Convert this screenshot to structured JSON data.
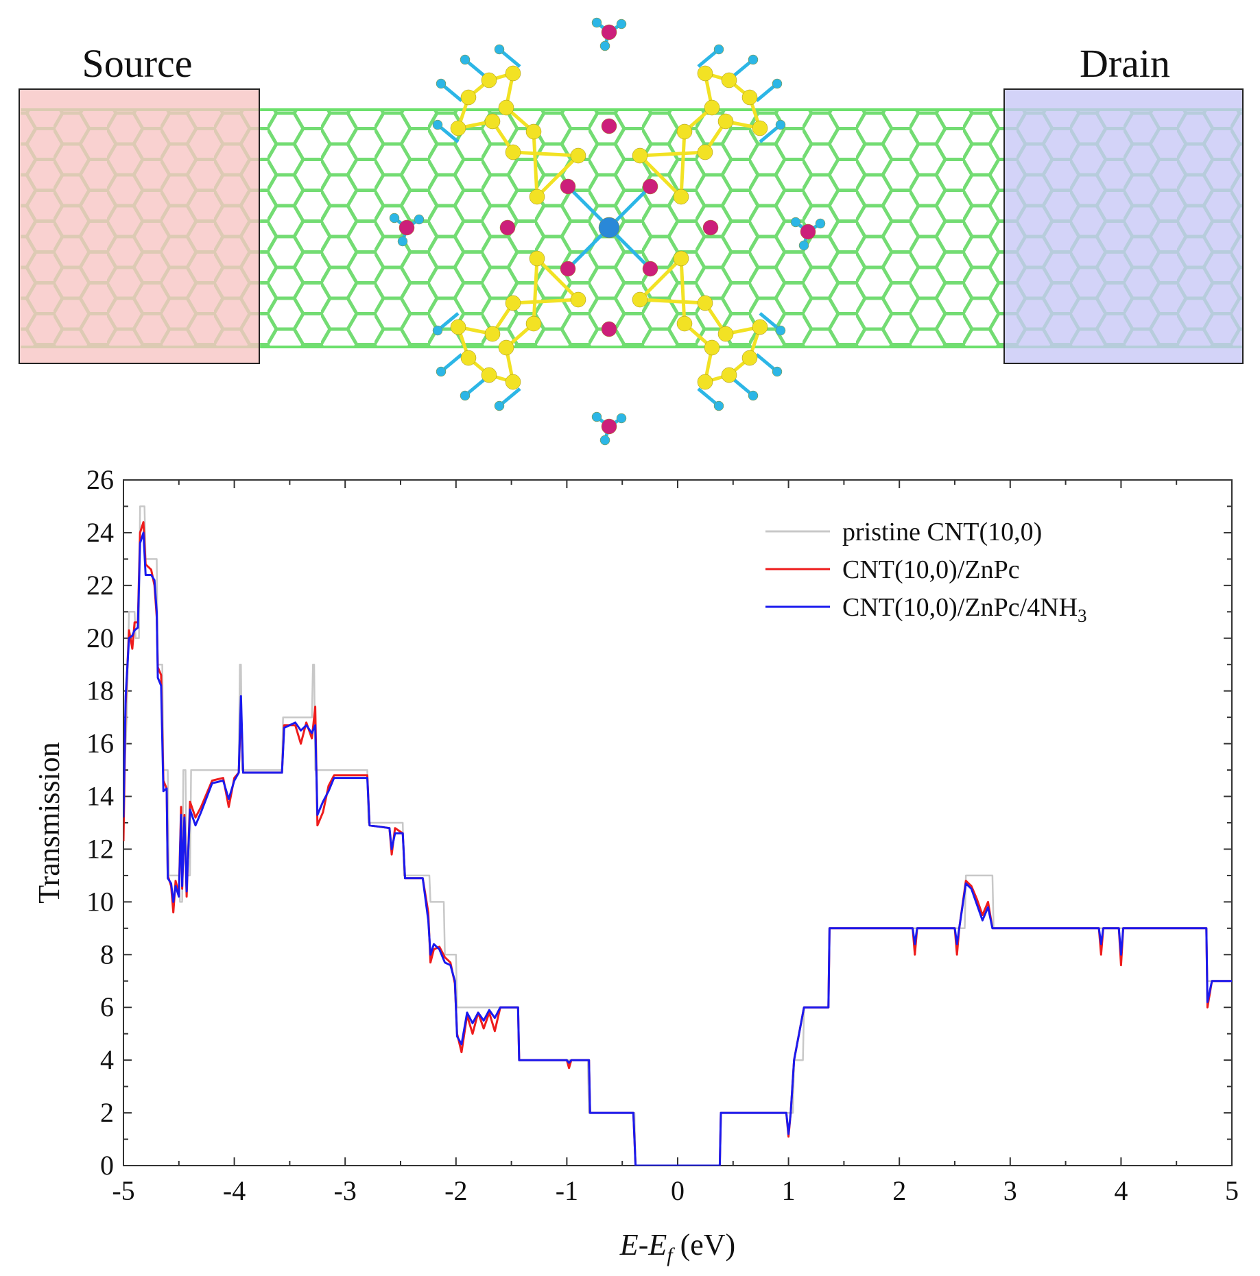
{
  "schematic": {
    "source_label": "Source",
    "drain_label": "Drain",
    "source_color": "#f7c6c4",
    "drain_color": "#c8c8f6",
    "tube_color": "#6ce06c",
    "atom_colors": {
      "carbon": "#f2e224",
      "nitrogen": "#cc1f7a",
      "hydrogen": "#2cb6e6",
      "zinc": "#2a88d8"
    }
  },
  "chart_data": {
    "type": "line",
    "title": "",
    "xlabel_italic_1": "E",
    "xlabel_mid": "-",
    "xlabel_italic_2": "E",
    "xlabel_sub": "f",
    "xlabel_unit": " (eV)",
    "ylabel": "Transmission",
    "xlim": [
      -5,
      5
    ],
    "ylim": [
      0,
      26
    ],
    "xticks": [
      -5,
      -4,
      -3,
      -2,
      -1,
      0,
      1,
      2,
      3,
      4,
      5
    ],
    "yticks": [
      0,
      2,
      4,
      6,
      8,
      10,
      12,
      14,
      16,
      18,
      20,
      22,
      24,
      26
    ],
    "legend_position": "top-right",
    "series": [
      {
        "name": "pristine CNT(10,0)",
        "color": "#c8c8c8",
        "points": [
          [
            -5.0,
            14
          ],
          [
            -4.97,
            17
          ],
          [
            -4.95,
            21
          ],
          [
            -4.9,
            21
          ],
          [
            -4.89,
            20
          ],
          [
            -4.86,
            20
          ],
          [
            -4.85,
            25
          ],
          [
            -4.81,
            25
          ],
          [
            -4.8,
            23
          ],
          [
            -4.7,
            23
          ],
          [
            -4.69,
            19
          ],
          [
            -4.65,
            19
          ],
          [
            -4.64,
            15
          ],
          [
            -4.6,
            15
          ],
          [
            -4.59,
            11
          ],
          [
            -4.5,
            11
          ],
          [
            -4.49,
            10
          ],
          [
            -4.47,
            10
          ],
          [
            -4.46,
            15
          ],
          [
            -4.44,
            15
          ],
          [
            -4.43,
            11
          ],
          [
            -4.4,
            11
          ],
          [
            -4.39,
            15
          ],
          [
            -3.96,
            15
          ],
          [
            -3.95,
            19
          ],
          [
            -3.94,
            19
          ],
          [
            -3.93,
            15
          ],
          [
            -3.57,
            15
          ],
          [
            -3.56,
            17
          ],
          [
            -3.3,
            17
          ],
          [
            -3.29,
            19
          ],
          [
            -3.28,
            19
          ],
          [
            -3.27,
            15
          ],
          [
            -2.8,
            15
          ],
          [
            -2.79,
            13
          ],
          [
            -2.48,
            13
          ],
          [
            -2.47,
            11
          ],
          [
            -2.24,
            11
          ],
          [
            -2.23,
            10
          ],
          [
            -2.11,
            10
          ],
          [
            -2.1,
            8
          ],
          [
            -2.0,
            8
          ],
          [
            -1.99,
            6
          ],
          [
            -1.44,
            6
          ],
          [
            -1.43,
            4
          ],
          [
            -0.81,
            4
          ],
          [
            -0.8,
            2
          ],
          [
            -0.39,
            2
          ],
          [
            -0.38,
            0
          ],
          [
            0.38,
            0
          ],
          [
            0.39,
            2
          ],
          [
            1.04,
            2
          ],
          [
            1.05,
            4
          ],
          [
            1.13,
            4
          ],
          [
            1.14,
            6
          ],
          [
            1.36,
            6
          ],
          [
            1.37,
            9
          ],
          [
            2.59,
            9
          ],
          [
            2.6,
            11
          ],
          [
            2.84,
            11
          ],
          [
            2.85,
            9
          ],
          [
            4.77,
            9
          ],
          [
            4.78,
            7
          ],
          [
            5.0,
            7
          ]
        ]
      },
      {
        "name": "CNT(10,0)/ZnPc",
        "color": "#ee1c1c",
        "points": [
          [
            -5.0,
            12.3
          ],
          [
            -4.98,
            17.5
          ],
          [
            -4.95,
            20.3
          ],
          [
            -4.92,
            19.6
          ],
          [
            -4.9,
            20.6
          ],
          [
            -4.87,
            20.6
          ],
          [
            -4.85,
            24.0
          ],
          [
            -4.82,
            24.4
          ],
          [
            -4.8,
            22.8
          ],
          [
            -4.75,
            22.6
          ],
          [
            -4.72,
            22.0
          ],
          [
            -4.7,
            20.8
          ],
          [
            -4.69,
            18.9
          ],
          [
            -4.66,
            18.6
          ],
          [
            -4.64,
            14.6
          ],
          [
            -4.61,
            14.3
          ],
          [
            -4.6,
            11.0
          ],
          [
            -4.57,
            10.6
          ],
          [
            -4.55,
            9.6
          ],
          [
            -4.53,
            10.8
          ],
          [
            -4.5,
            10.3
          ],
          [
            -4.48,
            13.6
          ],
          [
            -4.47,
            10.5
          ],
          [
            -4.45,
            13.3
          ],
          [
            -4.43,
            10.2
          ],
          [
            -4.4,
            13.8
          ],
          [
            -4.35,
            13.2
          ],
          [
            -4.3,
            13.6
          ],
          [
            -4.2,
            14.6
          ],
          [
            -4.1,
            14.7
          ],
          [
            -4.05,
            13.6
          ],
          [
            -4.0,
            14.7
          ],
          [
            -3.96,
            14.9
          ],
          [
            -3.94,
            17.4
          ],
          [
            -3.92,
            14.9
          ],
          [
            -3.57,
            14.9
          ],
          [
            -3.55,
            16.7
          ],
          [
            -3.45,
            16.7
          ],
          [
            -3.4,
            16.0
          ],
          [
            -3.35,
            16.8
          ],
          [
            -3.3,
            16.2
          ],
          [
            -3.27,
            17.4
          ],
          [
            -3.25,
            12.9
          ],
          [
            -3.2,
            13.4
          ],
          [
            -3.15,
            14.4
          ],
          [
            -3.1,
            14.8
          ],
          [
            -2.8,
            14.8
          ],
          [
            -2.78,
            12.9
          ],
          [
            -2.6,
            12.8
          ],
          [
            -2.58,
            11.8
          ],
          [
            -2.55,
            12.8
          ],
          [
            -2.48,
            12.6
          ],
          [
            -2.46,
            10.9
          ],
          [
            -2.3,
            10.9
          ],
          [
            -2.25,
            9.6
          ],
          [
            -2.23,
            7.7
          ],
          [
            -2.2,
            8.2
          ],
          [
            -2.15,
            8.3
          ],
          [
            -2.1,
            7.9
          ],
          [
            -2.05,
            7.7
          ],
          [
            -2.01,
            6.9
          ],
          [
            -1.99,
            5.0
          ],
          [
            -1.95,
            4.3
          ],
          [
            -1.9,
            5.7
          ],
          [
            -1.85,
            5.0
          ],
          [
            -1.8,
            5.8
          ],
          [
            -1.75,
            5.2
          ],
          [
            -1.7,
            5.8
          ],
          [
            -1.65,
            5.1
          ],
          [
            -1.6,
            6.0
          ],
          [
            -1.44,
            6.0
          ],
          [
            -1.43,
            4.0
          ],
          [
            -1.0,
            4.0
          ],
          [
            -0.98,
            3.7
          ],
          [
            -0.96,
            4.0
          ],
          [
            -0.8,
            4.0
          ],
          [
            -0.79,
            2.0
          ],
          [
            -0.4,
            2.0
          ],
          [
            -0.38,
            0
          ],
          [
            0.38,
            0
          ],
          [
            0.39,
            2.0
          ],
          [
            0.98,
            2.0
          ],
          [
            1.0,
            1.1
          ],
          [
            1.02,
            2.0
          ],
          [
            1.05,
            4.0
          ],
          [
            1.14,
            6.0
          ],
          [
            1.36,
            6.0
          ],
          [
            1.37,
            9.0
          ],
          [
            2.12,
            9.0
          ],
          [
            2.14,
            8.0
          ],
          [
            2.16,
            9.0
          ],
          [
            2.5,
            9.0
          ],
          [
            2.52,
            8.0
          ],
          [
            2.54,
            9.0
          ],
          [
            2.6,
            10.8
          ],
          [
            2.65,
            10.6
          ],
          [
            2.7,
            10.1
          ],
          [
            2.75,
            9.5
          ],
          [
            2.8,
            10.0
          ],
          [
            2.84,
            9.0
          ],
          [
            3.8,
            9.0
          ],
          [
            3.82,
            8.0
          ],
          [
            3.84,
            9.0
          ],
          [
            3.98,
            9.0
          ],
          [
            4.0,
            7.6
          ],
          [
            4.02,
            9.0
          ],
          [
            4.77,
            9.0
          ],
          [
            4.78,
            6.0
          ],
          [
            4.82,
            7.0
          ],
          [
            5.0,
            7.0
          ]
        ]
      },
      {
        "name": "CNT(10,0)/ZnPc/4NH",
        "name_sub": "3",
        "color": "#1a1aee",
        "points": [
          [
            -5.0,
            13.2
          ],
          [
            -4.98,
            17.8
          ],
          [
            -4.95,
            20.0
          ],
          [
            -4.92,
            20.1
          ],
          [
            -4.9,
            20.3
          ],
          [
            -4.87,
            20.4
          ],
          [
            -4.85,
            23.6
          ],
          [
            -4.82,
            24.0
          ],
          [
            -4.8,
            22.4
          ],
          [
            -4.75,
            22.4
          ],
          [
            -4.72,
            22.2
          ],
          [
            -4.7,
            21.0
          ],
          [
            -4.69,
            18.5
          ],
          [
            -4.66,
            18.2
          ],
          [
            -4.64,
            14.2
          ],
          [
            -4.61,
            14.3
          ],
          [
            -4.6,
            10.9
          ],
          [
            -4.57,
            10.7
          ],
          [
            -4.55,
            10.0
          ],
          [
            -4.53,
            10.6
          ],
          [
            -4.5,
            10.2
          ],
          [
            -4.48,
            13.3
          ],
          [
            -4.47,
            10.6
          ],
          [
            -4.45,
            13.2
          ],
          [
            -4.43,
            10.4
          ],
          [
            -4.4,
            13.5
          ],
          [
            -4.35,
            12.9
          ],
          [
            -4.3,
            13.4
          ],
          [
            -4.2,
            14.5
          ],
          [
            -4.1,
            14.6
          ],
          [
            -4.05,
            13.9
          ],
          [
            -4.0,
            14.6
          ],
          [
            -3.96,
            14.9
          ],
          [
            -3.94,
            17.8
          ],
          [
            -3.92,
            14.9
          ],
          [
            -3.57,
            14.9
          ],
          [
            -3.55,
            16.6
          ],
          [
            -3.45,
            16.8
          ],
          [
            -3.4,
            16.5
          ],
          [
            -3.35,
            16.7
          ],
          [
            -3.3,
            16.4
          ],
          [
            -3.27,
            16.7
          ],
          [
            -3.25,
            13.3
          ],
          [
            -3.2,
            13.8
          ],
          [
            -3.15,
            14.2
          ],
          [
            -3.1,
            14.7
          ],
          [
            -2.8,
            14.7
          ],
          [
            -2.78,
            12.9
          ],
          [
            -2.6,
            12.8
          ],
          [
            -2.58,
            12.0
          ],
          [
            -2.55,
            12.6
          ],
          [
            -2.48,
            12.6
          ],
          [
            -2.46,
            10.9
          ],
          [
            -2.3,
            10.9
          ],
          [
            -2.25,
            9.3
          ],
          [
            -2.23,
            8.0
          ],
          [
            -2.2,
            8.4
          ],
          [
            -2.15,
            8.2
          ],
          [
            -2.1,
            7.7
          ],
          [
            -2.05,
            7.6
          ],
          [
            -2.01,
            7.0
          ],
          [
            -1.99,
            4.9
          ],
          [
            -1.95,
            4.6
          ],
          [
            -1.9,
            5.8
          ],
          [
            -1.85,
            5.4
          ],
          [
            -1.8,
            5.8
          ],
          [
            -1.75,
            5.5
          ],
          [
            -1.7,
            5.9
          ],
          [
            -1.65,
            5.6
          ],
          [
            -1.6,
            6.0
          ],
          [
            -1.44,
            6.0
          ],
          [
            -1.43,
            4.0
          ],
          [
            -1.0,
            4.0
          ],
          [
            -0.98,
            3.9
          ],
          [
            -0.96,
            4.0
          ],
          [
            -0.8,
            4.0
          ],
          [
            -0.79,
            2.0
          ],
          [
            -0.4,
            2.0
          ],
          [
            -0.38,
            0
          ],
          [
            0.38,
            0
          ],
          [
            0.39,
            2.0
          ],
          [
            0.98,
            2.0
          ],
          [
            1.0,
            1.2
          ],
          [
            1.02,
            2.0
          ],
          [
            1.05,
            4.0
          ],
          [
            1.14,
            6.0
          ],
          [
            1.36,
            6.0
          ],
          [
            1.37,
            9.0
          ],
          [
            2.12,
            9.0
          ],
          [
            2.14,
            8.4
          ],
          [
            2.16,
            9.0
          ],
          [
            2.5,
            9.0
          ],
          [
            2.52,
            8.4
          ],
          [
            2.54,
            9.0
          ],
          [
            2.6,
            10.7
          ],
          [
            2.65,
            10.5
          ],
          [
            2.7,
            9.9
          ],
          [
            2.75,
            9.3
          ],
          [
            2.8,
            9.8
          ],
          [
            2.84,
            9.0
          ],
          [
            3.8,
            9.0
          ],
          [
            3.82,
            8.4
          ],
          [
            3.84,
            9.0
          ],
          [
            3.98,
            9.0
          ],
          [
            4.0,
            8.0
          ],
          [
            4.02,
            9.0
          ],
          [
            4.77,
            9.0
          ],
          [
            4.78,
            6.2
          ],
          [
            4.82,
            7.0
          ],
          [
            5.0,
            7.0
          ]
        ]
      }
    ]
  }
}
